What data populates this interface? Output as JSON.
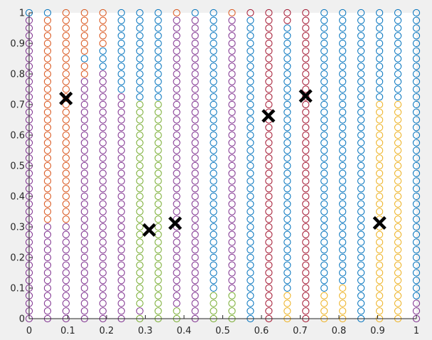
{
  "chart_data": {
    "type": "scatter",
    "title": "",
    "xlabel": "",
    "ylabel": "",
    "xlim": [
      0,
      1
    ],
    "ylim": [
      0,
      1
    ],
    "grid": false,
    "x_ticks": [
      "0",
      "0.1",
      "0.2",
      "0.3",
      "0.4",
      "0.5",
      "0.6",
      "0.7",
      "0.8",
      "0.9",
      "1"
    ],
    "y_ticks": [
      "0",
      "0.1",
      "0.2",
      "0.3",
      "0.4",
      "0.5",
      "0.6",
      "0.7",
      "0.8",
      "0.9",
      "1"
    ],
    "sample_grid": {
      "x": [
        0,
        0.0476,
        0.0952,
        0.1429,
        0.1905,
        0.2381,
        0.2857,
        0.3333,
        0.381,
        0.4286,
        0.4762,
        0.5238,
        0.5714,
        0.619,
        0.6667,
        0.7143,
        0.7619,
        0.8095,
        0.8571,
        0.9048,
        0.9524,
        1
      ],
      "y_step": 0.025,
      "y_range": [
        0,
        1
      ]
    },
    "series": [
      {
        "color": "#7E2F8E",
        "marker": "circle-open"
      },
      {
        "color": "#D95319",
        "marker": "circle-open"
      },
      {
        "color": "#0072BD",
        "marker": "circle-open"
      },
      {
        "color": "#77AC30",
        "marker": "circle-open"
      },
      {
        "color": "#A2142F",
        "marker": "circle-open"
      },
      {
        "color": "#EDB120",
        "marker": "circle-open"
      }
    ],
    "cluster_assignment": [
      {
        "x": 0,
        "segments": [
          [
            0,
            0.975,
            "#7E2F8E"
          ],
          [
            1.0,
            1.0,
            "#0072BD"
          ]
        ]
      },
      {
        "x": 0.0476,
        "segments": [
          [
            0,
            0.3,
            "#7E2F8E"
          ],
          [
            0.325,
            0.975,
            "#D95319"
          ],
          [
            1.0,
            1.0,
            "#0072BD"
          ]
        ]
      },
      {
        "x": 0.0952,
        "segments": [
          [
            0,
            0.3,
            "#7E2F8E"
          ],
          [
            0.325,
            1.0,
            "#D95319"
          ]
        ]
      },
      {
        "x": 0.1429,
        "segments": [
          [
            0,
            0.775,
            "#7E2F8E"
          ],
          [
            0.8,
            0.825,
            "#D95319"
          ],
          [
            0.85,
            0.85,
            "#0072BD"
          ],
          [
            0.875,
            1.0,
            "#D95319"
          ]
        ]
      },
      {
        "x": 0.1905,
        "segments": [
          [
            0,
            0.8,
            "#7E2F8E"
          ],
          [
            0.825,
            0.875,
            "#0072BD"
          ],
          [
            0.9,
            1.0,
            "#D95319"
          ]
        ]
      },
      {
        "x": 0.2381,
        "segments": [
          [
            0,
            0.725,
            "#7E2F8E"
          ],
          [
            0.75,
            1.0,
            "#0072BD"
          ]
        ]
      },
      {
        "x": 0.2857,
        "segments": [
          [
            0,
            0.0,
            "#77AC30"
          ],
          [
            0.025,
            0.025,
            "#7E2F8E"
          ],
          [
            0.05,
            0.7,
            "#77AC30"
          ],
          [
            0.725,
            1.0,
            "#0072BD"
          ]
        ]
      },
      {
        "x": 0.3333,
        "segments": [
          [
            0,
            0.7,
            "#77AC30"
          ],
          [
            0.725,
            1.0,
            "#0072BD"
          ]
        ]
      },
      {
        "x": 0.381,
        "segments": [
          [
            0,
            0.025,
            "#77AC30"
          ],
          [
            0.05,
            0.975,
            "#7E2F8E"
          ],
          [
            1.0,
            1.0,
            "#D95319"
          ]
        ]
      },
      {
        "x": 0.4286,
        "segments": [
          [
            0,
            0.975,
            "#7E2F8E"
          ],
          [
            1.0,
            1.0,
            "#0072BD"
          ]
        ]
      },
      {
        "x": 0.4762,
        "segments": [
          [
            0,
            0.075,
            "#77AC30"
          ],
          [
            0.1,
            1.0,
            "#0072BD"
          ]
        ]
      },
      {
        "x": 0.5238,
        "segments": [
          [
            0,
            0.075,
            "#77AC30"
          ],
          [
            0.1,
            0.975,
            "#7E2F8E"
          ],
          [
            1.0,
            1.0,
            "#D95319"
          ]
        ]
      },
      {
        "x": 0.5714,
        "segments": [
          [
            0,
            0.975,
            "#0072BD"
          ],
          [
            1.0,
            1.0,
            "#A2142F"
          ]
        ]
      },
      {
        "x": 0.619,
        "segments": [
          [
            0,
            1.0,
            "#A2142F"
          ]
        ]
      },
      {
        "x": 0.6667,
        "segments": [
          [
            0,
            0.075,
            "#EDB120"
          ],
          [
            0.1,
            0.95,
            "#0072BD"
          ],
          [
            0.975,
            1.0,
            "#A2142F"
          ]
        ]
      },
      {
        "x": 0.7143,
        "segments": [
          [
            0,
            1.0,
            "#A2142F"
          ]
        ]
      },
      {
        "x": 0.7619,
        "segments": [
          [
            0,
            0.075,
            "#EDB120"
          ],
          [
            0.1,
            1.0,
            "#0072BD"
          ]
        ]
      },
      {
        "x": 0.8095,
        "segments": [
          [
            0,
            0.1,
            "#EDB120"
          ],
          [
            0.125,
            1.0,
            "#0072BD"
          ]
        ]
      },
      {
        "x": 0.8571,
        "segments": [
          [
            0,
            1.0,
            "#0072BD"
          ]
        ]
      },
      {
        "x": 0.9048,
        "segments": [
          [
            0,
            0.7,
            "#EDB120"
          ],
          [
            0.725,
            1.0,
            "#0072BD"
          ]
        ]
      },
      {
        "x": 0.9524,
        "segments": [
          [
            0,
            0.7,
            "#EDB120"
          ],
          [
            0.725,
            1.0,
            "#0072BD"
          ]
        ]
      },
      {
        "x": 1,
        "segments": [
          [
            0,
            0.05,
            "#7E2F8E"
          ],
          [
            0.075,
            1.0,
            "#0072BD"
          ]
        ]
      }
    ],
    "centroids": [
      {
        "x": 0.095,
        "y": 0.72
      },
      {
        "x": 0.31,
        "y": 0.29
      },
      {
        "x": 0.377,
        "y": 0.312
      },
      {
        "x": 0.618,
        "y": 0.663
      },
      {
        "x": 0.714,
        "y": 0.728
      },
      {
        "x": 0.905,
        "y": 0.313
      }
    ],
    "centroid_marker": {
      "shape": "x",
      "color": "#000000"
    }
  }
}
